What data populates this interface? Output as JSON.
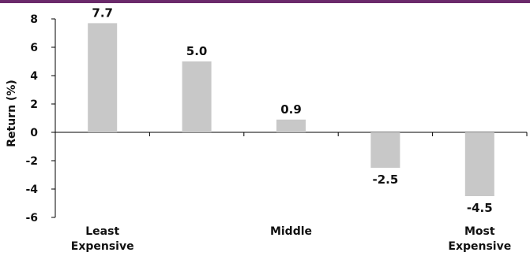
{
  "chart_data": {
    "type": "bar",
    "categories": [
      [
        "Least",
        "Expensive"
      ],
      [
        "",
        ""
      ],
      [
        "Middle",
        ""
      ],
      [
        "",
        ""
      ],
      [
        "Most",
        "Expensive"
      ]
    ],
    "values": [
      7.7,
      5.0,
      0.9,
      -2.5,
      -4.5
    ],
    "data_labels": [
      "7.7",
      "5.0",
      "0.9",
      "-2.5",
      "-4.5"
    ],
    "title": "",
    "xlabel": "",
    "ylabel": "Return (%)",
    "ylim": [
      -6,
      8
    ],
    "yticks": [
      8,
      6,
      4,
      2,
      0,
      -2,
      -4,
      -6
    ],
    "bar_color": "#c8c8c8",
    "accent_color": "#6b2a6b",
    "grid": false,
    "legend": "none"
  }
}
